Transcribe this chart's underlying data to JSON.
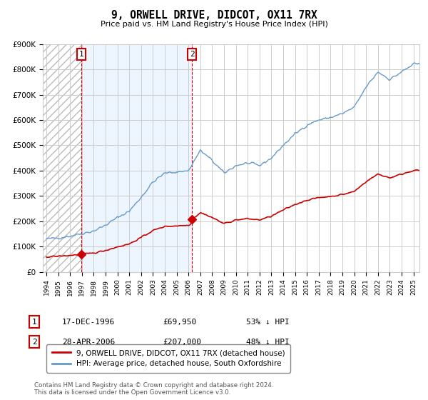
{
  "title": "9, ORWELL DRIVE, DIDCOT, OX11 7RX",
  "subtitle": "Price paid vs. HM Land Registry's House Price Index (HPI)",
  "ylim": [
    0,
    900000
  ],
  "yticks": [
    0,
    100000,
    200000,
    300000,
    400000,
    500000,
    600000,
    700000,
    800000,
    900000
  ],
  "ytick_labels": [
    "£0",
    "£100K",
    "£200K",
    "£300K",
    "£400K",
    "£500K",
    "£600K",
    "£700K",
    "£800K",
    "£900K"
  ],
  "xlim_start": 1993.7,
  "xlim_end": 2025.5,
  "sale1_date": 1996.96,
  "sale1_price": 69950,
  "sale2_date": 2006.29,
  "sale2_price": 207000,
  "background_color": "#ffffff",
  "hatch_color": "#aaaaaa",
  "light_blue_fill": "#ddeeff",
  "red_line_color": "#cc0000",
  "blue_line_color": "#6699cc",
  "legend_label_red": "9, ORWELL DRIVE, DIDCOT, OX11 7RX (detached house)",
  "legend_label_blue": "HPI: Average price, detached house, South Oxfordshire",
  "footer_text": "Contains HM Land Registry data © Crown copyright and database right 2024.\nThis data is licensed under the Open Government Licence v3.0.",
  "table_rows": [
    {
      "num": "1",
      "date": "17-DEC-1996",
      "price": "£69,950",
      "hpi": "53% ↓ HPI"
    },
    {
      "num": "2",
      "date": "28-APR-2006",
      "price": "£207,000",
      "hpi": "48% ↓ HPI"
    }
  ],
  "hpi_base_points": {
    "1994": 130000,
    "1995": 135000,
    "1996": 142000,
    "1997": 152000,
    "1998": 162000,
    "1999": 185000,
    "2000": 215000,
    "2001": 240000,
    "2002": 295000,
    "2003": 355000,
    "2004": 390000,
    "2005": 395000,
    "2006": 400000,
    "2007": 480000,
    "2008": 440000,
    "2009": 390000,
    "2010": 420000,
    "2011": 430000,
    "2012": 420000,
    "2013": 450000,
    "2014": 500000,
    "2015": 545000,
    "2016": 580000,
    "2017": 600000,
    "2018": 610000,
    "2019": 625000,
    "2020": 650000,
    "2021": 730000,
    "2022": 790000,
    "2023": 760000,
    "2024": 790000,
    "2025": 820000
  }
}
